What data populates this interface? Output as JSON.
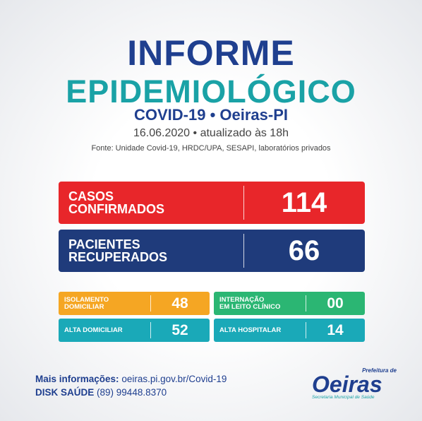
{
  "header": {
    "title": [
      "INFORME",
      "EPIDEMIOLÓGICO"
    ],
    "subtitle": "COVID-19 • Oeiras-PI",
    "date": "16.06.2020 • atualizado às 18h",
    "source": "Fonte: Unidade Covid-19, HRDC/UPA, SESAPI, laboratórios privados"
  },
  "main_stats": [
    {
      "label": [
        "CASOS",
        "CONFIRMADOS"
      ],
      "value": "114"
    },
    {
      "label": [
        "PACIENTES",
        "RECUPERADOS"
      ],
      "value": "66"
    }
  ],
  "small_stats": [
    {
      "label": [
        "ISOLAMENTO",
        "DOMICILIAR"
      ],
      "value": "48"
    },
    {
      "label": [
        "INTERNAÇÃO",
        "EM LEITO CLÍNICO"
      ],
      "value": "00"
    },
    {
      "label": [
        "ALTA DOMICILIAR"
      ],
      "value": "52"
    },
    {
      "label": [
        "ALTA HOSPITALAR"
      ],
      "value": "14"
    }
  ],
  "footer": {
    "info_label": "Mais informações:",
    "info_url": "oeiras.pi.gov.br/Covid-19",
    "phone_label": "DISK SAÚDE",
    "phone": "(89) 99448.8370"
  },
  "logo": {
    "top": "Prefeitura de",
    "name": "Oeiras",
    "bottom": "Secretaria Municipal de Saúde"
  }
}
